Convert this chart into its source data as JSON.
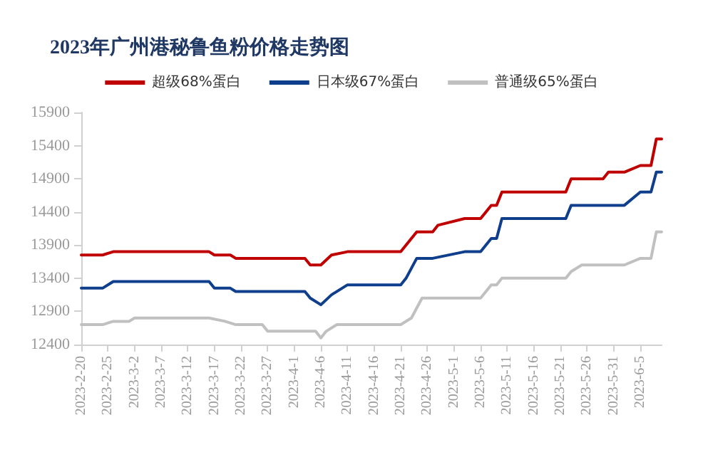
{
  "chart_data": {
    "type": "line",
    "title": "2023年广州港秘鲁鱼粉价格走势图",
    "series": [
      {
        "name": "超级68%蛋白",
        "color": "#c00000",
        "x": [
          "2023-02-20",
          "2023-02-24",
          "2023-02-26",
          "2023-03-16",
          "2023-03-17",
          "2023-03-20",
          "2023-03-21",
          "2023-04-03",
          "2023-04-04",
          "2023-04-06",
          "2023-04-08",
          "2023-04-11",
          "2023-04-21",
          "2023-04-24",
          "2023-04-27",
          "2023-04-28",
          "2023-05-03",
          "2023-05-06",
          "2023-05-08",
          "2023-05-09",
          "2023-05-10",
          "2023-05-22",
          "2023-05-23",
          "2023-05-29",
          "2023-05-30",
          "2023-06-02",
          "2023-06-05",
          "2023-06-07",
          "2023-06-08",
          "2023-06-09"
        ],
        "values": [
          13750,
          13750,
          13800,
          13800,
          13750,
          13750,
          13700,
          13700,
          13600,
          13600,
          13750,
          13800,
          13800,
          14100,
          14100,
          14200,
          14300,
          14300,
          14500,
          14500,
          14700,
          14700,
          14900,
          14900,
          15000,
          15000,
          15100,
          15100,
          15500,
          15500
        ]
      },
      {
        "name": "日本级67%蛋白",
        "color": "#0f3f8c",
        "x": [
          "2023-02-20",
          "2023-02-24",
          "2023-02-26",
          "2023-03-16",
          "2023-03-17",
          "2023-03-20",
          "2023-03-21",
          "2023-04-03",
          "2023-04-04",
          "2023-04-06",
          "2023-04-08",
          "2023-04-11",
          "2023-04-21",
          "2023-04-22",
          "2023-04-24",
          "2023-04-27",
          "2023-05-03",
          "2023-05-06",
          "2023-05-08",
          "2023-05-09",
          "2023-05-10",
          "2023-05-22",
          "2023-05-23",
          "2023-06-02",
          "2023-06-05",
          "2023-06-07",
          "2023-06-08",
          "2023-06-09"
        ],
        "values": [
          13250,
          13250,
          13350,
          13350,
          13250,
          13250,
          13200,
          13200,
          13100,
          13000,
          13150,
          13300,
          13300,
          13400,
          13700,
          13700,
          13800,
          13800,
          14000,
          14000,
          14300,
          14300,
          14500,
          14500,
          14700,
          14700,
          15000,
          15000
        ]
      },
      {
        "name": "普通级65%蛋白",
        "color": "#c0c0c0",
        "x": [
          "2023-02-20",
          "2023-02-24",
          "2023-02-26",
          "2023-03-01",
          "2023-03-02",
          "2023-03-16",
          "2023-03-19",
          "2023-03-21",
          "2023-03-26",
          "2023-03-27",
          "2023-04-05",
          "2023-04-06",
          "2023-04-07",
          "2023-04-09",
          "2023-04-21",
          "2023-04-23",
          "2023-04-25",
          "2023-05-06",
          "2023-05-08",
          "2023-05-09",
          "2023-05-10",
          "2023-05-22",
          "2023-05-23",
          "2023-05-25",
          "2023-06-02",
          "2023-06-05",
          "2023-06-07",
          "2023-06-08",
          "2023-06-09"
        ],
        "values": [
          12700,
          12700,
          12750,
          12750,
          12800,
          12800,
          12750,
          12700,
          12700,
          12600,
          12600,
          12500,
          12600,
          12700,
          12700,
          12800,
          13100,
          13100,
          13300,
          13300,
          13400,
          13400,
          13500,
          13600,
          13600,
          13700,
          13700,
          14100,
          14100
        ]
      }
    ],
    "xlim": [
      "2023-02-20",
      "2023-06-09"
    ],
    "xticks": [
      {
        "value": "2023-02-20",
        "label": "2023-2-20"
      },
      {
        "value": "2023-02-25",
        "label": "2023-2-25"
      },
      {
        "value": "2023-03-02",
        "label": "2023-3-2"
      },
      {
        "value": "2023-03-07",
        "label": "2023-3-7"
      },
      {
        "value": "2023-03-12",
        "label": "2023-3-12"
      },
      {
        "value": "2023-03-17",
        "label": "2023-3-17"
      },
      {
        "value": "2023-03-22",
        "label": "2023-3-22"
      },
      {
        "value": "2023-03-27",
        "label": "2023-3-27"
      },
      {
        "value": "2023-04-01",
        "label": "2023-4-1"
      },
      {
        "value": "2023-04-06",
        "label": "2023-4-6"
      },
      {
        "value": "2023-04-11",
        "label": "2023-4-11"
      },
      {
        "value": "2023-04-16",
        "label": "2023-4-16"
      },
      {
        "value": "2023-04-21",
        "label": "2023-4-21"
      },
      {
        "value": "2023-04-26",
        "label": "2023-4-26"
      },
      {
        "value": "2023-05-01",
        "label": "2023-5-1"
      },
      {
        "value": "2023-05-06",
        "label": "2023-5-6"
      },
      {
        "value": "2023-05-11",
        "label": "2023-5-11"
      },
      {
        "value": "2023-05-16",
        "label": "2023-5-16"
      },
      {
        "value": "2023-05-21",
        "label": "2023-5-21"
      },
      {
        "value": "2023-05-26",
        "label": "2023-5-26"
      },
      {
        "value": "2023-05-31",
        "label": "2023-5-31"
      },
      {
        "value": "2023-06-05",
        "label": "2023-6-5"
      }
    ],
    "ylim": [
      12400,
      15900
    ],
    "yticks": [
      12400,
      12900,
      13400,
      13900,
      14400,
      14900,
      15400,
      15900
    ],
    "grid": false,
    "legend": "top",
    "marker": "none",
    "line_style": "solid"
  }
}
